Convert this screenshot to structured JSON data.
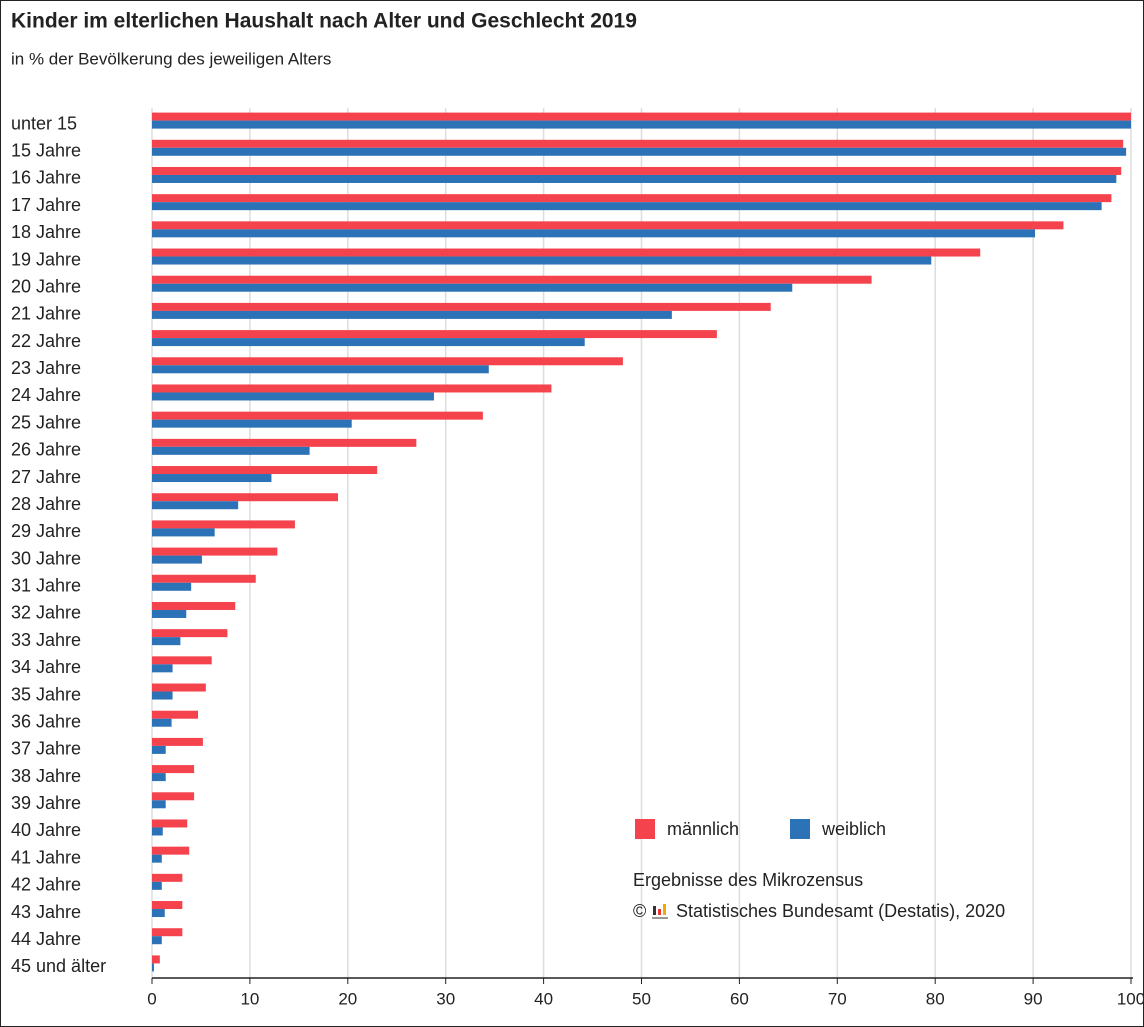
{
  "chart_data": {
    "type": "barh",
    "title": "Kinder im elterlichen Haushalt nach Alter und Geschlecht 2019",
    "subtitle": "in % der Bevölkerung des jeweiligen Alters",
    "categories": [
      "unter 15",
      "15 Jahre",
      "16 Jahre",
      "17 Jahre",
      "18 Jahre",
      "19 Jahre",
      "20 Jahre",
      "21 Jahre",
      "22 Jahre",
      "23 Jahre",
      "24 Jahre",
      "25 Jahre",
      "26 Jahre",
      "27 Jahre",
      "28 Jahre",
      "29 Jahre",
      "30 Jahre",
      "31 Jahre",
      "32 Jahre",
      "33 Jahre",
      "34 Jahre",
      "35 Jahre",
      "36 Jahre",
      "37 Jahre",
      "38 Jahre",
      "39 Jahre",
      "40 Jahre",
      "41 Jahre",
      "42 Jahre",
      "43 Jahre",
      "44 Jahre",
      "45 und älter"
    ],
    "series": [
      {
        "name": "männlich",
        "color": "#f5434e",
        "values": [
          100,
          99.2,
          99.0,
          98.0,
          93.1,
          84.6,
          73.5,
          63.2,
          57.7,
          48.1,
          40.8,
          33.8,
          27.0,
          23.0,
          19.0,
          14.6,
          12.8,
          10.6,
          8.5,
          7.7,
          6.1,
          5.5,
          4.7,
          5.2,
          4.3,
          4.3,
          3.6,
          3.8,
          3.1,
          3.1,
          3.1,
          0.8
        ]
      },
      {
        "name": "weiblich",
        "color": "#2b72b6",
        "values": [
          100,
          99.5,
          98.5,
          97.0,
          90.2,
          79.6,
          65.4,
          53.1,
          44.2,
          34.4,
          28.8,
          20.4,
          16.1,
          12.2,
          8.8,
          6.4,
          5.1,
          4.0,
          3.5,
          2.9,
          2.1,
          2.1,
          2.0,
          1.4,
          1.4,
          1.4,
          1.1,
          1.0,
          1.0,
          1.3,
          1.0,
          0.2
        ]
      }
    ],
    "xlim": [
      0,
      100
    ],
    "xticks": [
      0,
      10,
      20,
      30,
      40,
      50,
      60,
      70,
      80,
      90,
      100
    ],
    "grid": true,
    "note": "Ergebnisse des Mikrozensus",
    "copyright": "©",
    "source": "Statistisches Bundesamt (Destatis), 2020"
  }
}
